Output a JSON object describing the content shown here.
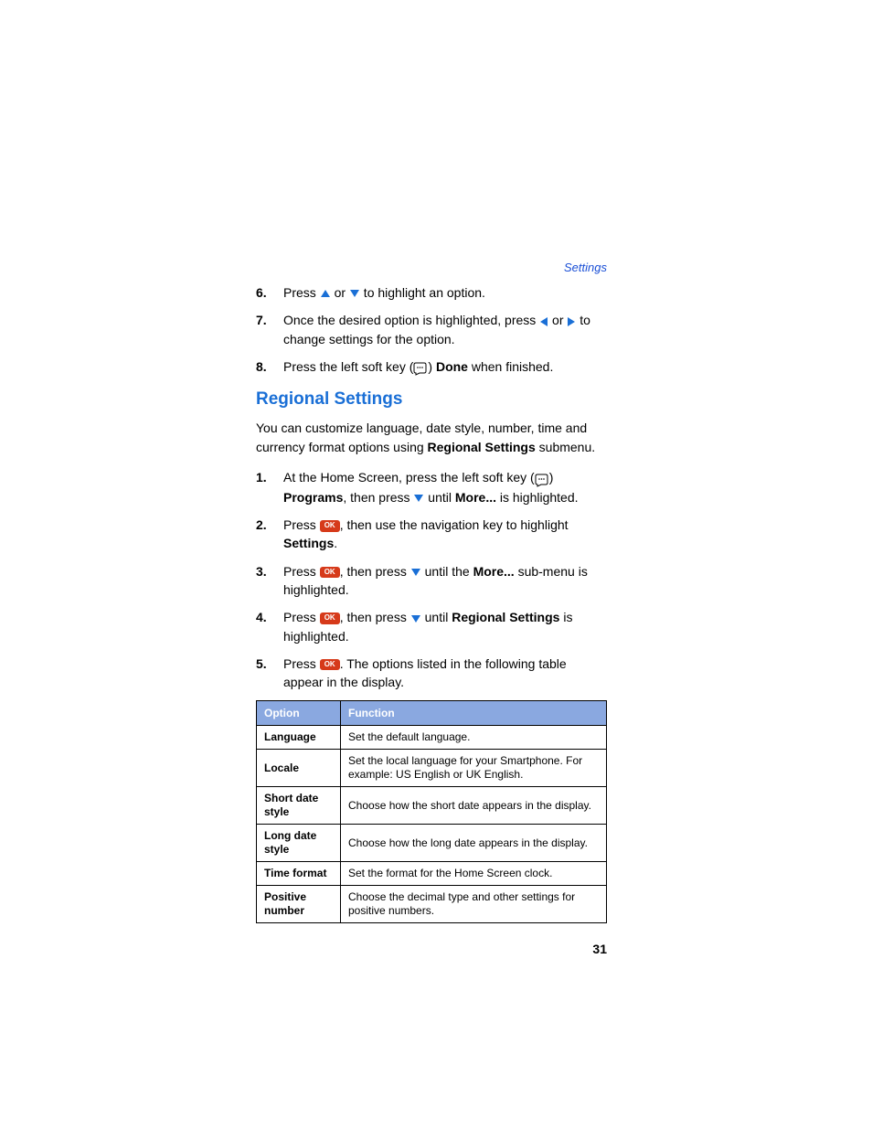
{
  "header": {
    "link": "Settings"
  },
  "topSteps": [
    {
      "num": "6.",
      "parts": [
        {
          "t": "Press "
        },
        {
          "icon": "up"
        },
        {
          "t": " or "
        },
        {
          "icon": "down"
        },
        {
          "t": " to highlight an option."
        }
      ]
    },
    {
      "num": "7.",
      "parts": [
        {
          "t": "Once the desired option is highlighted, press "
        },
        {
          "icon": "left"
        },
        {
          "t": " or "
        },
        {
          "icon": "right"
        },
        {
          "t": " to change settings for the option."
        }
      ]
    },
    {
      "num": "8.",
      "parts": [
        {
          "t": "Press the left soft key ("
        },
        {
          "icon": "softkey"
        },
        {
          "t": ") "
        },
        {
          "bold": "Done"
        },
        {
          "t": " when finished."
        }
      ]
    }
  ],
  "section": {
    "title": "Regional Settings",
    "intro_parts": [
      {
        "t": "You can customize language, date style, number, time and currency format options using "
      },
      {
        "bold": "Regional Settings"
      },
      {
        "t": " submenu."
      }
    ]
  },
  "regSteps": [
    {
      "num": "1.",
      "parts": [
        {
          "t": "At the Home Screen, press the left soft key ("
        },
        {
          "icon": "softkey"
        },
        {
          "t": ") "
        },
        {
          "bold": "Programs"
        },
        {
          "t": ", then press "
        },
        {
          "icon": "down"
        },
        {
          "t": " until "
        },
        {
          "bold": "More..."
        },
        {
          "t": " is highlighted."
        }
      ]
    },
    {
      "num": "2.",
      "parts": [
        {
          "t": "Press "
        },
        {
          "icon": "ok"
        },
        {
          "t": ", then use the navigation key to highlight "
        },
        {
          "bold": "Settings"
        },
        {
          "t": "."
        }
      ]
    },
    {
      "num": "3.",
      "parts": [
        {
          "t": "Press "
        },
        {
          "icon": "ok"
        },
        {
          "t": ", then press "
        },
        {
          "icon": "down"
        },
        {
          "t": " until the "
        },
        {
          "bold": "More..."
        },
        {
          "t": " sub-menu is highlighted."
        }
      ]
    },
    {
      "num": "4.",
      "parts": [
        {
          "t": "Press "
        },
        {
          "icon": "ok"
        },
        {
          "t": ", then press "
        },
        {
          "icon": "down"
        },
        {
          "t": " until "
        },
        {
          "bold": "Regional Settings"
        },
        {
          "t": " is highlighted."
        }
      ]
    },
    {
      "num": "5.",
      "parts": [
        {
          "t": "Press "
        },
        {
          "icon": "ok"
        },
        {
          "t": ". The options listed in the following table appear in the display."
        }
      ]
    }
  ],
  "table": {
    "headers": {
      "option": "Option",
      "function": "Function"
    },
    "header_bg": "#8aa8e0",
    "header_color": "#ffffff",
    "rows": [
      {
        "option": "Language",
        "function": "Set the default language."
      },
      {
        "option": "Locale",
        "function": "Set the local language for your Smartphone. For example: US English or UK English."
      },
      {
        "option": "Short date style",
        "function": "Choose how the short date appears in the display."
      },
      {
        "option": "Long date style",
        "function": "Choose how the long date appears in the display."
      },
      {
        "option": "Time format",
        "function": "Set the format for the Home Screen clock."
      },
      {
        "option": "Positive number",
        "function": "Choose the decimal type and other settings for positive numbers."
      }
    ]
  },
  "pagenum": "31",
  "colors": {
    "link": "#1a4fd6",
    "title": "#1a6fd6",
    "arrow": "#1a6fd6",
    "ok": "#d63a1a"
  },
  "icons": {
    "ok_label": "OK"
  }
}
